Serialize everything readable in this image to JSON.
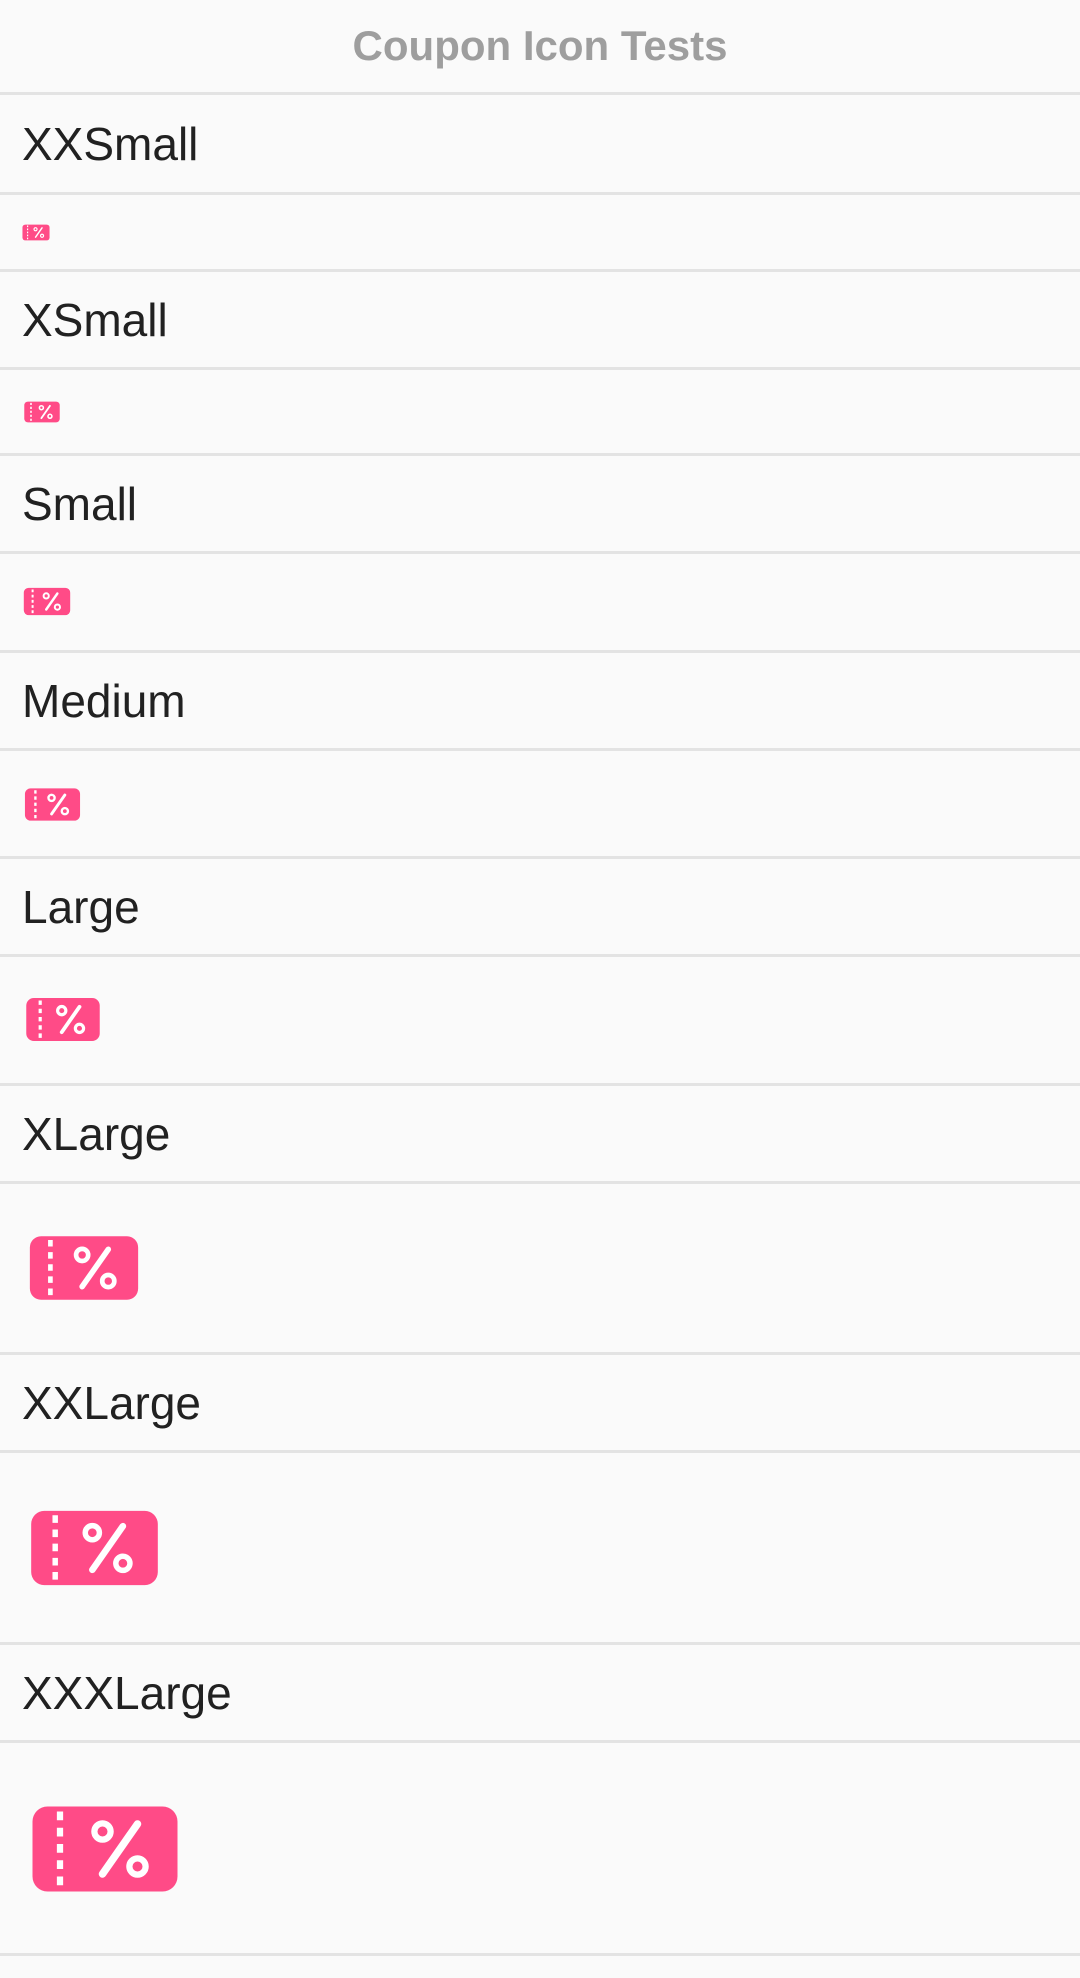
{
  "header": {
    "title": "Coupon Icon Tests"
  },
  "accent_color": "#ff4b87",
  "sizes": [
    {
      "label": "XXSmall",
      "icon": "coupon-percent-icon"
    },
    {
      "label": "XSmall",
      "icon": "coupon-percent-icon"
    },
    {
      "label": "Small",
      "icon": "coupon-percent-icon"
    },
    {
      "label": "Medium",
      "icon": "coupon-percent-icon"
    },
    {
      "label": "Large",
      "icon": "coupon-percent-icon"
    },
    {
      "label": "XLarge",
      "icon": "coupon-percent-icon"
    },
    {
      "label": "XXLarge",
      "icon": "coupon-percent-icon"
    },
    {
      "label": "XXXLarge",
      "icon": "coupon-percent-icon"
    }
  ]
}
